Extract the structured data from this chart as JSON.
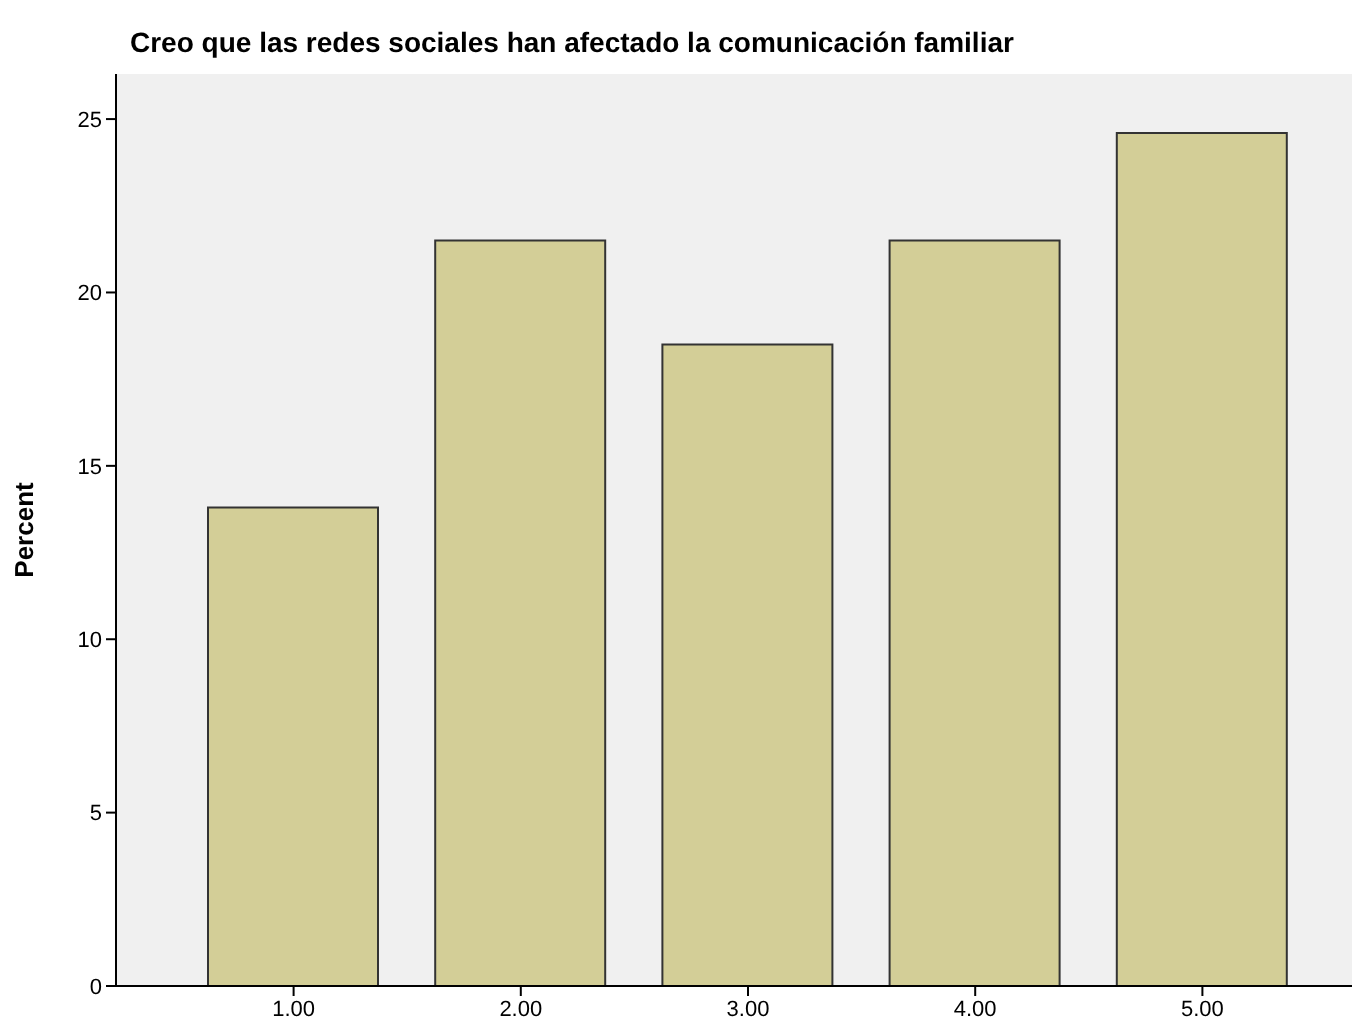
{
  "chart_data": {
    "type": "bar",
    "title": "Creo que las redes sociales han afectado la comunicación familiar",
    "ylabel": "Percent",
    "categories": [
      "1.00",
      "2.00",
      "3.00",
      "4.00",
      "5.00"
    ],
    "values": [
      13.8,
      21.5,
      18.5,
      21.5,
      24.6
    ],
    "color": "#d3ce97",
    "ylim": [
      0,
      26.3
    ],
    "yticks": [
      0,
      5,
      10,
      15,
      20,
      25
    ],
    "grid": false,
    "legend": false
  }
}
